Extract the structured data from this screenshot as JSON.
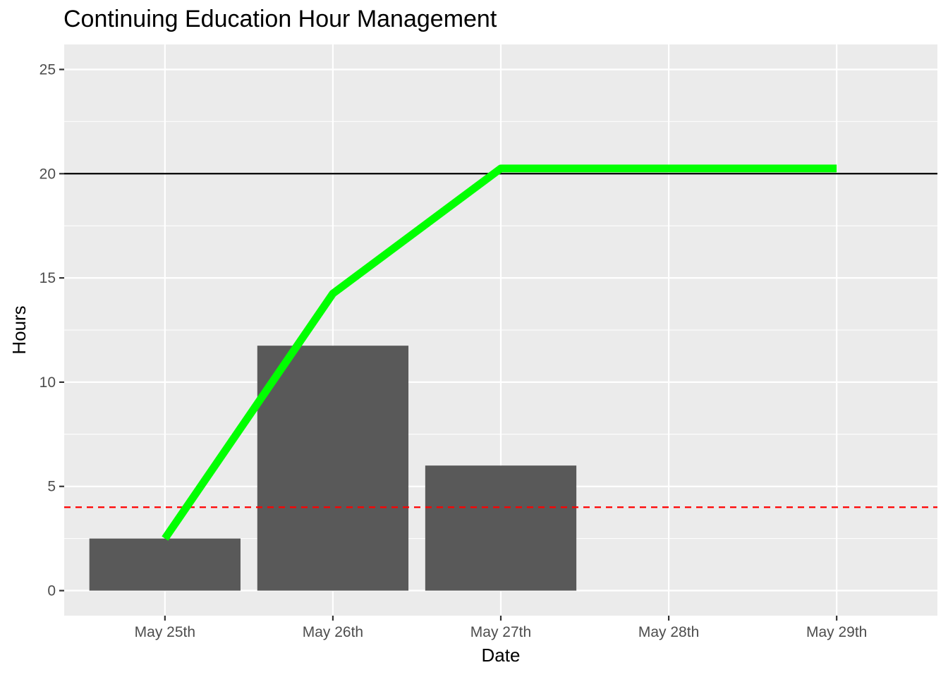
{
  "chart_data": {
    "type": "bar",
    "title": "Continuing Education Hour Management",
    "xlabel": "Date",
    "ylabel": "Hours",
    "categories": [
      "May 25th",
      "May 26th",
      "May 27th",
      "May 28th",
      "May 29th"
    ],
    "ylim": [
      -1.2,
      26.2
    ],
    "y_ticks": [
      0,
      5,
      10,
      15,
      20,
      25
    ],
    "grid": true,
    "series": [
      {
        "kind": "bar",
        "values": [
          2.5,
          11.75,
          6,
          null,
          null
        ],
        "color": "#595959"
      },
      {
        "kind": "line",
        "values": [
          2.5,
          14.25,
          20.25,
          20.25,
          20.25
        ],
        "color": "#00ff00"
      }
    ],
    "reference_lines": [
      {
        "y": 20,
        "style": "solid",
        "color": "#000000"
      },
      {
        "y": 4,
        "style": "dashed",
        "color": "#ff0000"
      }
    ],
    "colors": {
      "panel": "#ebebeb",
      "grid": "#ffffff",
      "axis_text": "#4d4d4d"
    }
  }
}
